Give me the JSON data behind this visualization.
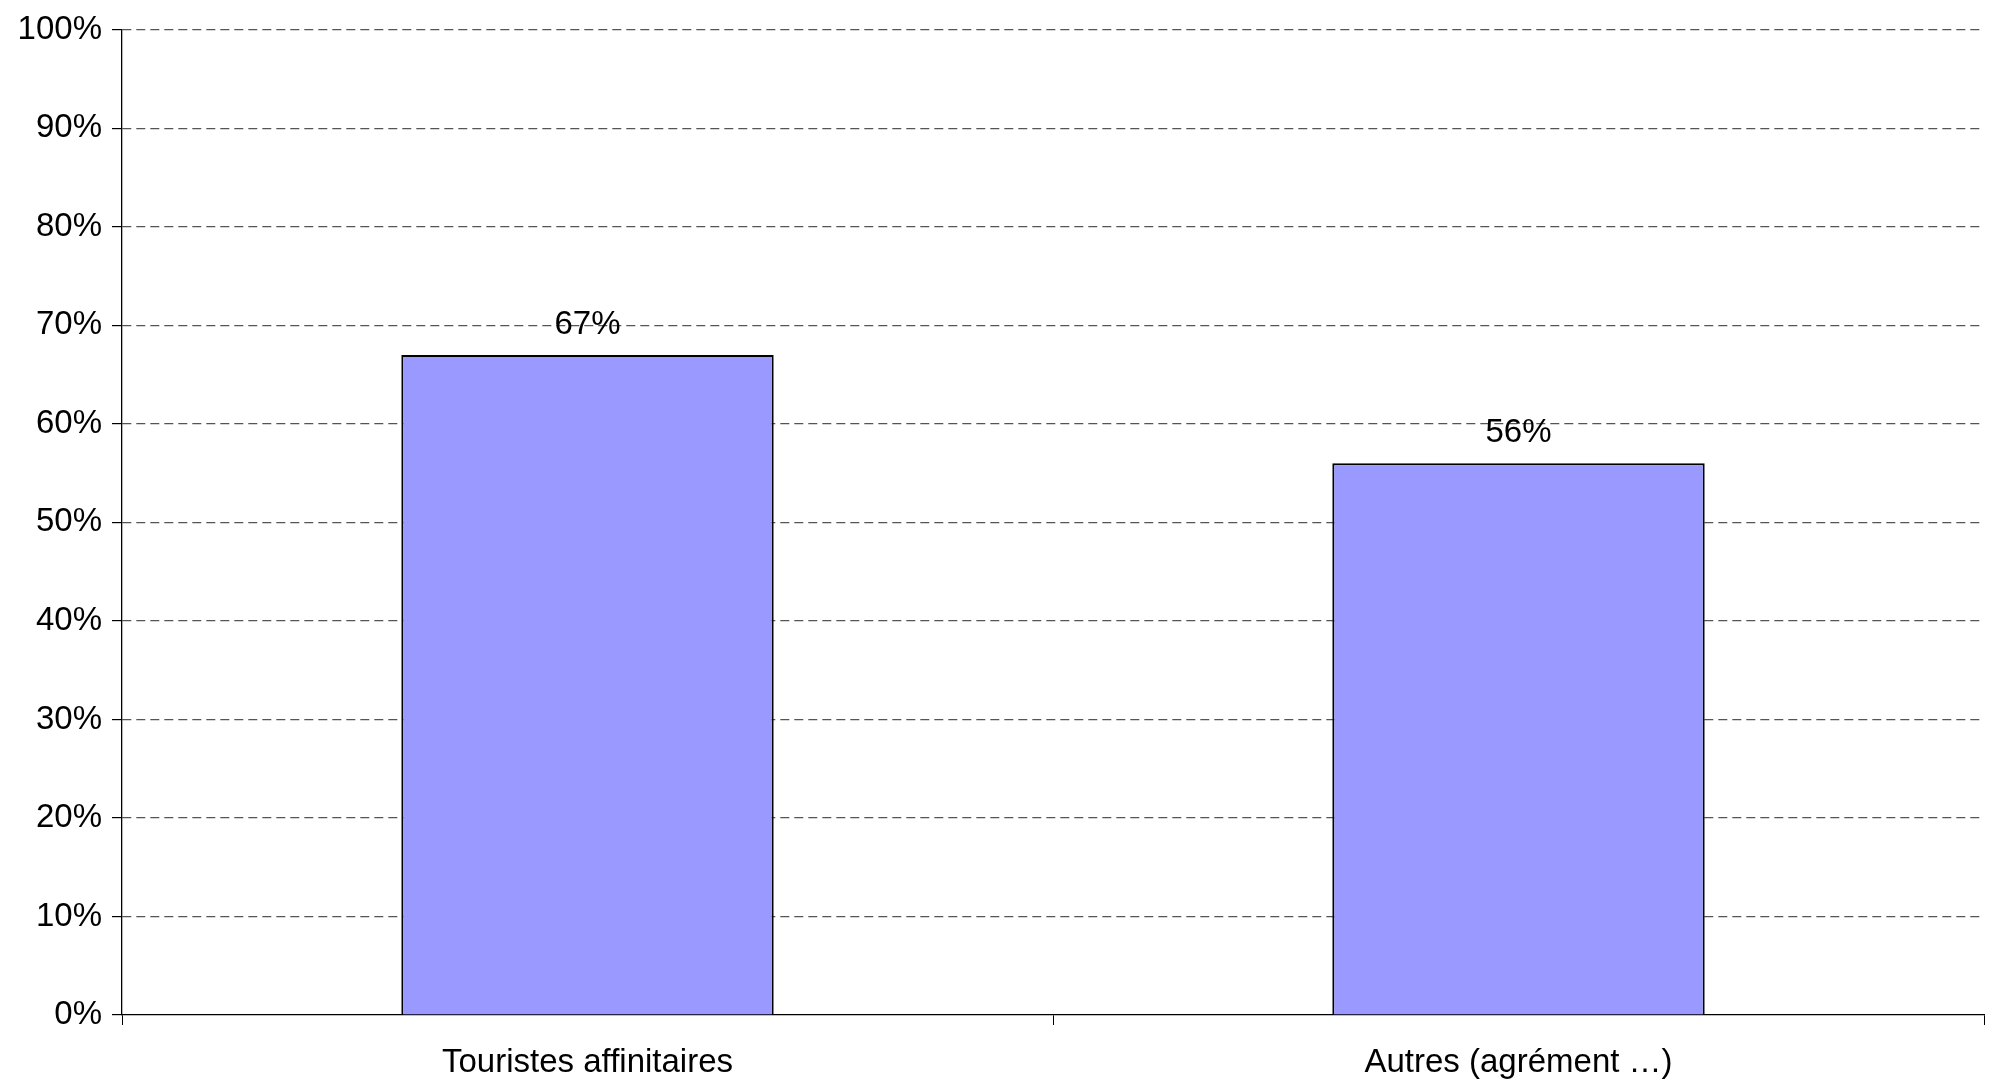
{
  "chart_data": {
    "type": "bar",
    "categories": [
      "Touristes affinitaires",
      "Autres (agrément …)"
    ],
    "values": [
      67,
      56
    ],
    "color": "#9999ff",
    "value_labels": [
      "67%",
      "56%"
    ],
    "ylim": [
      0,
      100
    ],
    "yticks": [
      {
        "value": 0,
        "label": "0%"
      },
      {
        "value": 10,
        "label": "10%"
      },
      {
        "value": 20,
        "label": "20%"
      },
      {
        "value": 30,
        "label": "30%"
      },
      {
        "value": 40,
        "label": "40%"
      },
      {
        "value": 50,
        "label": "50%"
      },
      {
        "value": 60,
        "label": "60%"
      },
      {
        "value": 70,
        "label": "70%"
      },
      {
        "value": 80,
        "label": "80%"
      },
      {
        "value": 90,
        "label": "90%"
      },
      {
        "value": 100,
        "label": "100%"
      }
    ],
    "grid": "y"
  }
}
